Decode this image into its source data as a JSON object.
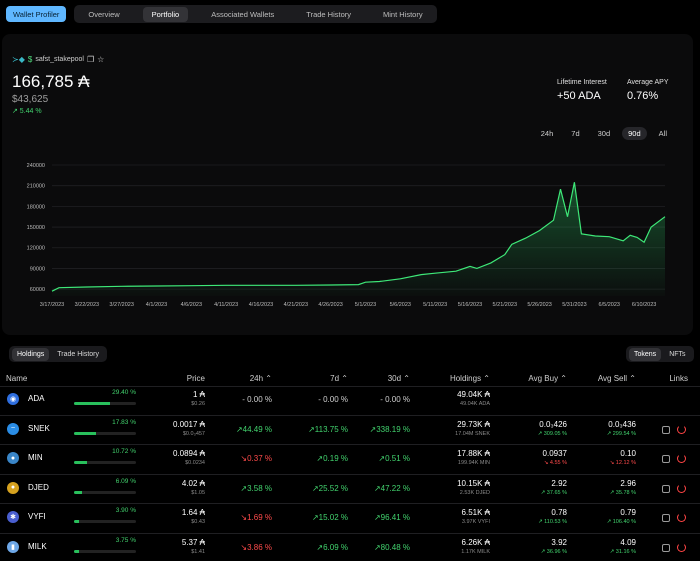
{
  "nav": {
    "profiler_label": "Wallet Profiler",
    "tabs": [
      "Overview",
      "Portfolio",
      "Associated Wallets",
      "Trade History",
      "Mint History"
    ],
    "active_tab": "Portfolio"
  },
  "portfolio": {
    "pool_name": "safst_stakepool",
    "balance": "166,785 ₳",
    "usd_value": "$43,625",
    "change": "↗ 5.44 %",
    "lifetime_interest_label": "Lifetime Interest",
    "lifetime_interest_value": "+50 ADA",
    "average_apy_label": "Average APY",
    "average_apy_value": "0.76%",
    "ranges": [
      "24h",
      "7d",
      "30d",
      "90d",
      "All"
    ],
    "active_range": "90d"
  },
  "chart_data": {
    "type": "area",
    "ylim": [
      50000,
      240000
    ],
    "y_ticks": [
      60000,
      90000,
      120000,
      150000,
      180000,
      210000,
      240000
    ],
    "y_tick_labels": [
      "60000",
      "90000",
      "120000",
      "150000",
      "180000",
      "210000",
      "240000"
    ],
    "x_tick_labels": [
      "3/17/2023",
      "3/22/2023",
      "3/27/2023",
      "4/1/2023",
      "4/6/2023",
      "4/11/2023",
      "4/16/2023",
      "4/21/2023",
      "4/26/2023",
      "5/1/2023",
      "5/6/2023",
      "5/11/2023",
      "5/16/2023",
      "5/21/2023",
      "5/26/2023",
      "5/31/2023",
      "6/5/2023",
      "6/10/2023"
    ],
    "x": [
      "3/17/2023",
      "3/18/2023",
      "3/22/2023",
      "3/27/2023",
      "4/1/2023",
      "4/6/2023",
      "4/11/2023",
      "4/16/2023",
      "4/21/2023",
      "4/26/2023",
      "4/30/2023",
      "5/1/2023",
      "5/3/2023",
      "5/6/2023",
      "5/9/2023",
      "5/11/2023",
      "5/14/2023",
      "5/16/2023",
      "5/17/2023",
      "5/19/2023",
      "5/21/2023",
      "5/22/2023",
      "5/24/2023",
      "5/26/2023",
      "5/28/2023",
      "5/29/2023",
      "5/30/2023",
      "5/31/2023",
      "6/1/2023",
      "6/3/2023",
      "6/5/2023",
      "6/7/2023",
      "6/8/2023",
      "6/9/2023",
      "6/10/2023",
      "6/11/2023",
      "6/13/2023"
    ],
    "values": [
      57000,
      62000,
      63000,
      64000,
      64500,
      65000,
      65500,
      65500,
      65500,
      66000,
      66500,
      70000,
      71000,
      75000,
      81000,
      83000,
      86000,
      93000,
      90000,
      98000,
      110000,
      125000,
      134000,
      145000,
      160000,
      205000,
      165000,
      215000,
      140000,
      137000,
      136000,
      130000,
      138000,
      135000,
      128000,
      150000,
      165000
    ],
    "series": [
      {
        "name": "Portfolio",
        "color": "#3ee878"
      }
    ]
  },
  "controls": {
    "left": [
      "Holdings",
      "Trade History"
    ],
    "left_active": "Holdings",
    "right": [
      "Tokens",
      "NFTs"
    ],
    "right_active": "Tokens"
  },
  "table": {
    "headers": {
      "name": "Name",
      "price": "Price",
      "d24": "24h ⌃",
      "d7": "7d ⌃",
      "d30": "30d ⌃",
      "holdings": "Holdings ⌃",
      "avg_buy": "Avg Buy ⌃",
      "avg_sell": "Avg Sell ⌃",
      "links": "Links"
    },
    "rows": [
      {
        "name": "ADA",
        "alloc": "29.40 %",
        "alloc_frac": 0.294,
        "icon_color": "#2f6fe0",
        "icon": "◉",
        "price": "1 ₳",
        "price_sub": "$0.26",
        "d24": "- 0.00 %",
        "d24_c": "gr",
        "d7": "- 0.00 %",
        "d7_c": "gr",
        "d30": "- 0.00 %",
        "d30_c": "gr",
        "holdings": "49.04K ₳",
        "holdings_sub": "49.04K ADA",
        "avg_buy": "",
        "avg_buy_sub": "",
        "avg_buy_c": "g",
        "avg_sell": "",
        "avg_sell_sub": "",
        "avg_sell_c": "g",
        "links": false
      },
      {
        "name": "SNEK",
        "alloc": "17.83 %",
        "alloc_frac": 0.178,
        "icon_color": "#2a8de6",
        "icon": "~",
        "price": "0.0017 ₳",
        "price_sub": "$0.0₃457",
        "d24": "↗44.49 %",
        "d24_c": "g",
        "d7": "↗113.75 %",
        "d7_c": "g",
        "d30": "↗338.19 %",
        "d30_c": "g",
        "holdings": "29.73K ₳",
        "holdings_sub": "17.04M SNEK",
        "avg_buy": "0.0₃426",
        "avg_buy_sub": "↗ 309.05 %",
        "avg_buy_c": "g",
        "avg_sell": "0.0₃436",
        "avg_sell_sub": "↗ 299.54 %",
        "avg_sell_c": "g",
        "links": true
      },
      {
        "name": "MIN",
        "alloc": "10.72 %",
        "alloc_frac": 0.107,
        "icon_color": "#3a86c8",
        "icon": "●",
        "price": "0.0894 ₳",
        "price_sub": "$0.0234",
        "d24": "↘0.37 %",
        "d24_c": "r",
        "d7": "↗0.19 %",
        "d7_c": "g",
        "d30": "↗0.51 %",
        "d30_c": "g",
        "holdings": "17.88K ₳",
        "holdings_sub": "199.94K MIN",
        "avg_buy": "0.0937",
        "avg_buy_sub": "↘ 4.55 %",
        "avg_buy_c": "r",
        "avg_sell": "0.10",
        "avg_sell_sub": "↘ 12.12 %",
        "avg_sell_c": "r",
        "links": true
      },
      {
        "name": "DJED",
        "alloc": "6.09 %",
        "alloc_frac": 0.061,
        "icon_color": "#d6a21f",
        "icon": "●",
        "price": "4.02 ₳",
        "price_sub": "$1.05",
        "d24": "↗3.58 %",
        "d24_c": "g",
        "d7": "↗25.52 %",
        "d7_c": "g",
        "d30": "↗47.22 %",
        "d30_c": "g",
        "holdings": "10.15K ₳",
        "holdings_sub": "2.53K DJED",
        "avg_buy": "2.92",
        "avg_buy_sub": "↗ 37.65 %",
        "avg_buy_c": "g",
        "avg_sell": "2.96",
        "avg_sell_sub": "↗ 35.78 %",
        "avg_sell_c": "g",
        "links": true
      },
      {
        "name": "VYFI",
        "alloc": "3.90 %",
        "alloc_frac": 0.039,
        "icon_color": "#4a5fd0",
        "icon": "✱",
        "price": "1.64 ₳",
        "price_sub": "$0.43",
        "d24": "↘1.69 %",
        "d24_c": "r",
        "d7": "↗15.02 %",
        "d7_c": "g",
        "d30": "↗96.41 %",
        "d30_c": "g",
        "holdings": "6.51K ₳",
        "holdings_sub": "3.97K VYFI",
        "avg_buy": "0.78",
        "avg_buy_sub": "↗ 110.53 %",
        "avg_buy_c": "g",
        "avg_sell": "0.79",
        "avg_sell_sub": "↗ 106.40 %",
        "avg_sell_c": "g",
        "links": true
      },
      {
        "name": "MILK",
        "alloc": "3.75 %",
        "alloc_frac": 0.0375,
        "icon_color": "#6ea8e8",
        "icon": "▮",
        "price": "5.37 ₳",
        "price_sub": "$1.41",
        "d24": "↘3.86 %",
        "d24_c": "r",
        "d7": "↗6.09 %",
        "d7_c": "g",
        "d30": "↗80.48 %",
        "d30_c": "g",
        "holdings": "6.26K ₳",
        "holdings_sub": "1.17K MILK",
        "avg_buy": "3.92",
        "avg_buy_sub": "↗ 36.96 %",
        "avg_buy_c": "g",
        "avg_sell": "4.09",
        "avg_sell_sub": "↗ 31.16 %",
        "avg_sell_c": "g",
        "links": true
      }
    ]
  }
}
